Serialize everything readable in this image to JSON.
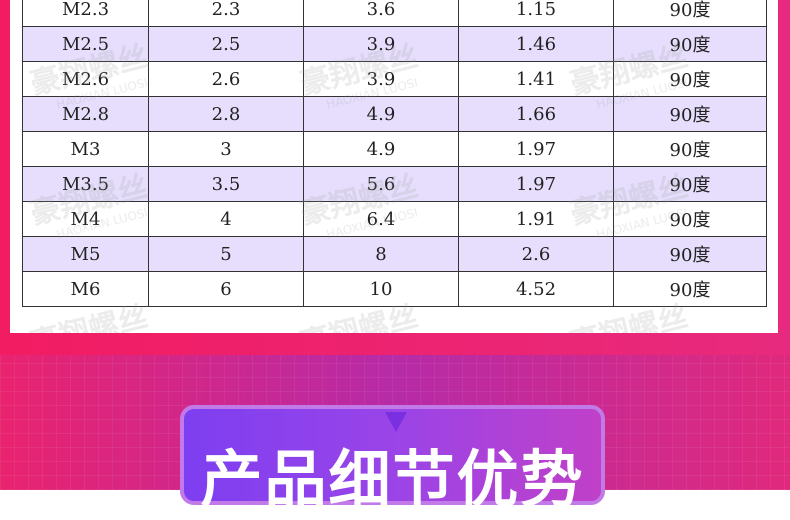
{
  "table": {
    "rows": [
      [
        "M2.3",
        "2.3",
        "3.6",
        "1.15",
        "90度"
      ],
      [
        "M2.5",
        "2.5",
        "3.9",
        "1.46",
        "90度"
      ],
      [
        "M2.6",
        "2.6",
        "3.9",
        "1.41",
        "90度"
      ],
      [
        "M2.8",
        "2.8",
        "4.9",
        "1.66",
        "90度"
      ],
      [
        "M3",
        "3",
        "4.9",
        "1.97",
        "90度"
      ],
      [
        "M3.5",
        "3.5",
        "5.6",
        "1.97",
        "90度"
      ],
      [
        "M4",
        "4",
        "6.4",
        "1.91",
        "90度"
      ],
      [
        "M5",
        "5",
        "8",
        "2.6",
        "90度"
      ],
      [
        "M6",
        "6",
        "10",
        "4.52",
        "90度"
      ]
    ]
  },
  "watermark": {
    "cn": "豪翔螺丝",
    "en": "HAOXIAN LUOSI"
  },
  "section": {
    "title": "产品细节优势"
  }
}
